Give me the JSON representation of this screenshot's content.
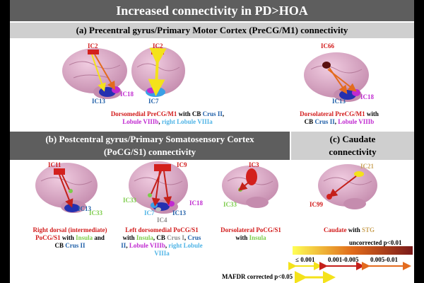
{
  "title": "Increased connectivity in PD>HOA",
  "section_a": "(a) Precentral gyrus/Primary Motor Cortex (PreCG/M1) connectivity",
  "section_b": {
    "line1": "(b) Postcentral gyrus/Primary Somatosensory Cortex",
    "line2": "(PoCG/S1) connectivity"
  },
  "section_c": {
    "line1": "(c)  Caudate",
    "line2": "connectivity"
  },
  "labels": {
    "a1_ic2": "IC2",
    "a1_ic13": "IC13",
    "a1_ic18": "IC18",
    "a2_ic2": "IC2",
    "a2_ic7": "IC7",
    "a3_ic66": "IC66",
    "a3_ic13": "IC13",
    "a3_ic18": "IC18",
    "b1_ic11": "IC11",
    "b1_ic13": "IC13",
    "b1_ic33": "IC33",
    "b2_ic9": "IC9",
    "b2_ic33": "IC33",
    "b2_ic7": "IC7",
    "b2_ic4": "IC4",
    "b2_ic13": "IC13",
    "b2_ic18": "IC18",
    "b3_ic3": "IC3",
    "b3_ic33": "IC33",
    "c_ic21": "IC21",
    "c_ic99": "IC99"
  },
  "captions": {
    "a12": {
      "p1": "Dorsomedial PreCG/M1",
      "p2": " with CB ",
      "p3": "Crus II",
      "p4": ",",
      "p5": "Lobule VIIIb",
      "p6": ", ",
      "p7": "right Lobule VIIIa"
    },
    "a3": {
      "p1": "Dorsolateral PreCG/M1",
      "p2": " with",
      "p3": "CB ",
      "p4": "Crus II",
      "p5": ", ",
      "p6": "Lobule VIIIb"
    },
    "b1": {
      "p1": "Right dorsal (intermediate)",
      "p2": "PoCG/S1",
      "p3": " with ",
      "p4": "Insula",
      "p5": " and",
      "p6": "CB ",
      "p7": "Crus II"
    },
    "b2": {
      "p1": "Left dorsomedial PoCG/S1",
      "p2": "with ",
      "p3": "Insula",
      "p4": ", CB ",
      "p5": "Crus I",
      "p6": ", ",
      "p7": "Crus",
      "p8": "II",
      "p9": ", ",
      "p10": "Lobule VIIIb",
      "p11": ", ",
      "p12": "right Lobule",
      "p13": "VIIIa"
    },
    "b3": {
      "p1": "Dorsolateral PoCG/S1",
      "p2": "with ",
      "p3": "Insula"
    },
    "c": {
      "p1": "Caudate",
      "p2": " with ",
      "p3": "STG"
    }
  },
  "legend": {
    "uncorrected": "uncorrected p<0.01",
    "range1": "≤ 0.001",
    "range2": "0.001-0.005",
    "range3": "0.005-0.01",
    "corrected": "MAFDR corrected p<0.05"
  },
  "colors": {
    "brain": "#d8a3c0",
    "header_dark": "#5e5e5e",
    "header_light": "#cfcfcf"
  }
}
